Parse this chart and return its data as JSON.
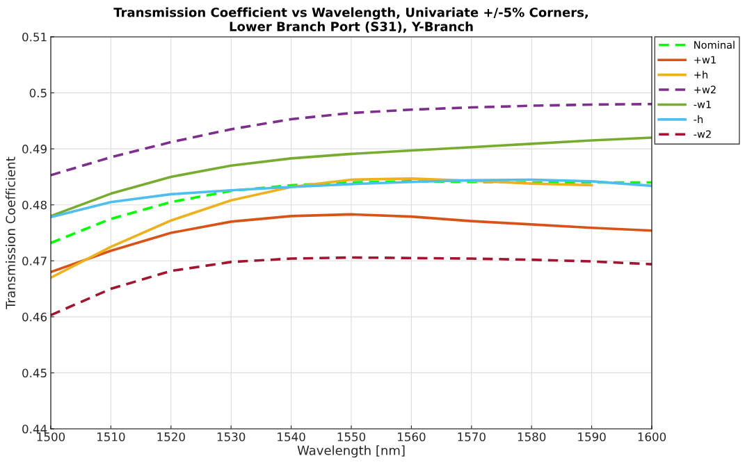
{
  "chart_data": {
    "type": "line",
    "title": "Transmission Coefficient vs Wavelength, Univariate +/-5% Corners,\nLower Branch Port (S31), Y-Branch",
    "xlabel": "Wavelength [nm]",
    "ylabel": "Transmission Coefficient",
    "x": [
      1500,
      1510,
      1520,
      1530,
      1540,
      1550,
      1560,
      1570,
      1580,
      1590,
      1600
    ],
    "series": [
      {
        "name": "Nominal",
        "color": "#00ff00",
        "line_style": "dashed",
        "values": [
          0.4732,
          0.4775,
          0.4805,
          0.4825,
          0.4835,
          0.484,
          0.4842,
          0.4841,
          0.484,
          0.484,
          0.484
        ]
      },
      {
        "name": "+w1",
        "color": "#d95319",
        "values": [
          0.468,
          0.4718,
          0.475,
          0.477,
          0.478,
          0.4783,
          0.4779,
          0.4771,
          0.4765,
          0.4759,
          0.4754
        ]
      },
      {
        "name": "+h",
        "color": "#edb120",
        "values": [
          0.467,
          0.4725,
          0.4772,
          0.4808,
          0.4832,
          0.4845,
          0.4847,
          0.4843,
          0.4838,
          0.4835,
          null
        ]
      },
      {
        "name": "+w2",
        "color": "#7e2f8e",
        "line_style": "dashed",
        "values": [
          0.4853,
          0.4885,
          0.4912,
          0.4935,
          0.4953,
          0.4964,
          0.497,
          0.4974,
          0.4977,
          0.4979,
          0.498
        ]
      },
      {
        "name": "-w1",
        "color": "#77ac30",
        "values": [
          0.478,
          0.482,
          0.485,
          0.487,
          0.4883,
          0.4891,
          0.4897,
          0.4903,
          0.4909,
          0.4915,
          0.492
        ]
      },
      {
        "name": "-h",
        "color": "#4dbeee",
        "values": [
          0.4778,
          0.4805,
          0.4819,
          0.4826,
          0.4832,
          0.4837,
          0.4841,
          0.4844,
          0.4845,
          0.4842,
          0.4834
        ]
      },
      {
        "name": "-w2",
        "color": "#a2142f",
        "line_style": "dashed",
        "values": [
          0.4603,
          0.465,
          0.4682,
          0.4698,
          0.4704,
          0.4706,
          0.4705,
          0.4704,
          0.4702,
          0.4699,
          0.4694
        ]
      }
    ],
    "xlim": [
      1500,
      1600
    ],
    "xticks": [
      1500,
      1510,
      1520,
      1530,
      1540,
      1550,
      1560,
      1570,
      1580,
      1590,
      1600
    ],
    "ylim": [
      0.44,
      0.51
    ],
    "yticks": [
      0.44,
      0.45,
      0.46,
      0.47,
      0.48,
      0.49,
      0.5,
      0.51
    ],
    "grid": true,
    "legend": "top right",
    "marker": "none"
  }
}
